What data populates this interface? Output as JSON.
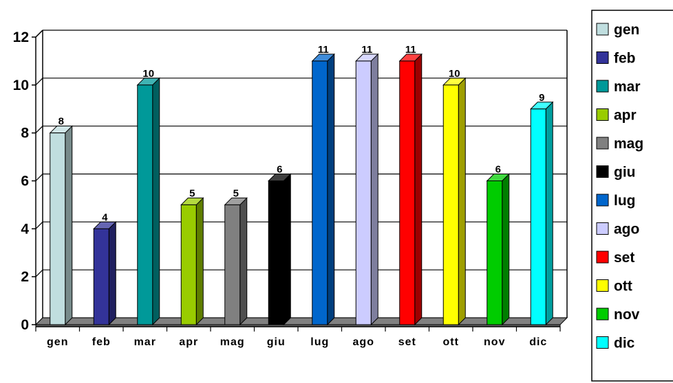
{
  "chart_data": {
    "type": "bar",
    "categories": [
      "gen",
      "feb",
      "mar",
      "apr",
      "mag",
      "giu",
      "lug",
      "ago",
      "set",
      "ott",
      "nov",
      "dic"
    ],
    "values": [
      8,
      4,
      10,
      5,
      5,
      6,
      11,
      11,
      11,
      10,
      6,
      9
    ],
    "colors": [
      "#C0DEDF",
      "#333399",
      "#009999",
      "#99CC00",
      "#808080",
      "#000000",
      "#0066CC",
      "#CCCCFF",
      "#FF0000",
      "#FFFF00",
      "#00CC00",
      "#00FFFF"
    ],
    "ylim": [
      0,
      12
    ],
    "yticks": [
      0,
      2,
      4,
      6,
      8,
      10,
      12
    ],
    "grid": true,
    "three_d": true,
    "data_labels": true,
    "legend": {
      "position": "right",
      "entries": [
        "gen",
        "feb",
        "mar",
        "apr",
        "mag",
        "giu",
        "lug",
        "ago",
        "set",
        "ott",
        "nov",
        "dic"
      ]
    },
    "title": "",
    "xlabel": "",
    "ylabel": ""
  }
}
